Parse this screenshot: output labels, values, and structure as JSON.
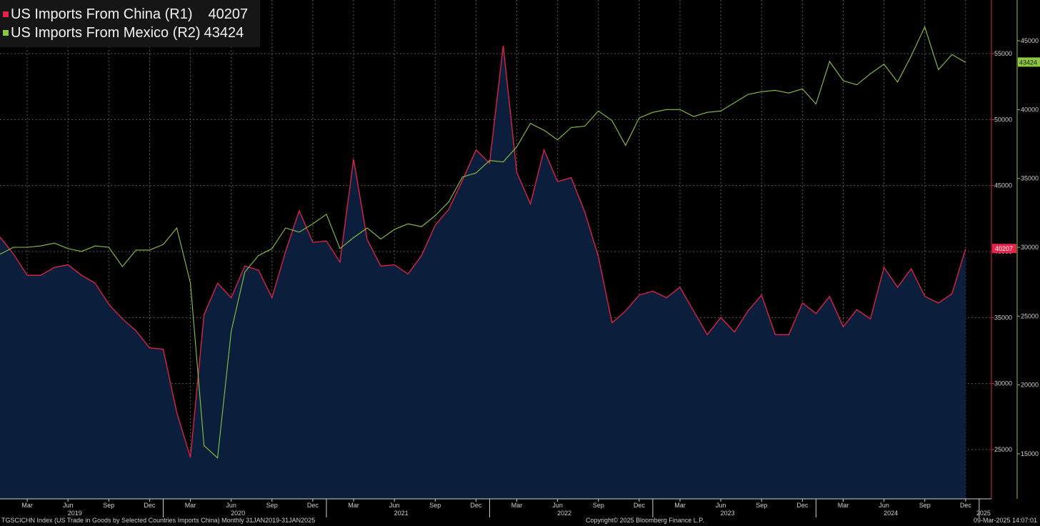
{
  "legend": {
    "china_label": "US Imports From China (R1)",
    "china_value": "40207",
    "mexico_label": "US Imports From Mexico (R2)",
    "mexico_value": "43424"
  },
  "colors": {
    "china": "#e8234a",
    "mexico": "#8dc63f",
    "fill": "#0b1e3c",
    "background": "#000000",
    "grid": "#5a5a5a",
    "legend_bg": "#161616"
  },
  "footer": {
    "left": "TGSCICHN Index (US Trade in Goods by Selected Countries Imports China)  Monthly 31JAN2019-31JAN2025",
    "center": "Copyright© 2025 Bloomberg Finance L.P.",
    "right": "09-Mar-2025 14:07:01"
  },
  "chart_data": {
    "type": "line",
    "x_start": "2019-01",
    "x_end": "2025-01",
    "x_month_labels": [
      "Mar",
      "Jun",
      "Sep",
      "Dec",
      "Mar",
      "Jun",
      "Sep",
      "Dec",
      "Mar",
      "Jun",
      "Sep",
      "Dec",
      "Mar",
      "Jun",
      "Sep",
      "Dec",
      "Mar",
      "Jun",
      "Sep",
      "Dec",
      "Mar",
      "Jun",
      "Sep",
      "Dec"
    ],
    "x_year_labels": [
      "2019",
      "2020",
      "2021",
      "2022",
      "2023",
      "2024",
      "2025"
    ],
    "grid": true,
    "legend_position": "top-left",
    "axes": {
      "r1": {
        "side": "right-inner",
        "color": "#e8234a",
        "ylim": [
          22000,
          57500
        ],
        "ticks": [
          25000,
          30000,
          35000,
          40000,
          45000,
          50000,
          55000
        ]
      },
      "r2": {
        "side": "right-outer",
        "color": "#8dc63f",
        "ylim": [
          12700,
          46550
        ],
        "ticks": [
          15000,
          20000,
          25000,
          30000,
          35000,
          40000,
          45000
        ]
      }
    },
    "series": [
      {
        "name": "US Imports From China (R1)",
        "axis": "r1",
        "last_value": 40207,
        "values": [
          41100,
          39800,
          38200,
          38200,
          38800,
          39000,
          38200,
          37600,
          36000,
          34900,
          34000,
          32700,
          32600,
          27800,
          24400,
          35200,
          37600,
          36500,
          38900,
          38600,
          36500,
          40000,
          43100,
          40700,
          40800,
          39200,
          47000,
          40900,
          38900,
          39000,
          38300,
          39700,
          42000,
          43200,
          45400,
          47700,
          46700,
          55600,
          46000,
          43600,
          47700,
          45300,
          45600,
          43000,
          39600,
          34600,
          35500,
          36700,
          37000,
          36500,
          37300,
          35500,
          33700,
          35000,
          33900,
          35500,
          36700,
          33700,
          33700,
          36100,
          35300,
          36600,
          34300,
          35600,
          34900,
          38800,
          37300,
          38700,
          36600,
          36100,
          36800,
          40207
        ]
      },
      {
        "name": "US Imports From Mexico (R2)",
        "axis": "r2",
        "last_value": 43424,
        "values": [
          29500,
          30000,
          30000,
          30100,
          30300,
          29900,
          29700,
          30100,
          30000,
          28600,
          29800,
          29800,
          30200,
          31400,
          27400,
          15600,
          14700,
          23900,
          28200,
          29400,
          29900,
          31400,
          31100,
          31700,
          32400,
          29900,
          30700,
          31400,
          30600,
          31300,
          31700,
          31500,
          32300,
          33300,
          35100,
          35400,
          36300,
          36200,
          37300,
          39000,
          38500,
          37800,
          38700,
          38800,
          39900,
          39200,
          37400,
          39400,
          39800,
          40000,
          40000,
          39500,
          39800,
          39900,
          40500,
          41100,
          41300,
          41400,
          41200,
          41500,
          40400,
          43500,
          42100,
          41800,
          42600,
          43300,
          42000,
          43900,
          46000,
          42900,
          44000,
          43424
        ]
      }
    ]
  }
}
